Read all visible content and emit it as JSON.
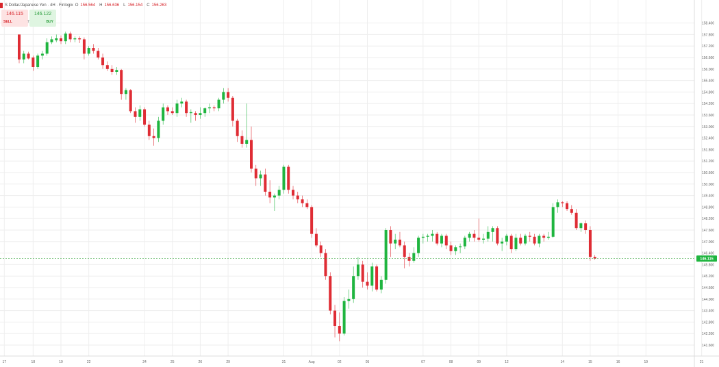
{
  "header": {
    "symbol_title": "S Dollar/Japanese Yen · 4H · Finlogix",
    "ohlc": [
      {
        "key": "O",
        "value": "156.564"
      },
      {
        "key": "H",
        "value": "156.636"
      },
      {
        "key": "L",
        "value": "156.154"
      },
      {
        "key": "C",
        "value": "156.263"
      }
    ]
  },
  "trade": {
    "sell_price": "146.115",
    "buy_price": "146.122",
    "sell_label": "SELL",
    "buy_label": "BUY",
    "spread": "7"
  },
  "colors": {
    "up": "#1fb53f",
    "down": "#df2c34",
    "grid": "#eeeeee",
    "current_price_line": "#4caf50",
    "current_price_tag": "#1fb53f"
  },
  "chart_data": {
    "type": "candlestick",
    "title": "",
    "xlabel": "",
    "ylabel": "",
    "ylim": [
      141.6,
      159.1
    ],
    "grid": true,
    "y_ticks": [
      "158.400",
      "157.800",
      "157.200",
      "156.600",
      "156.000",
      "155.400",
      "154.800",
      "154.200",
      "153.600",
      "153.000",
      "152.400",
      "151.800",
      "151.200",
      "150.600",
      "150.000",
      "149.400",
      "148.800",
      "148.200",
      "147.600",
      "147.000",
      "146.400",
      "145.800",
      "145.200",
      "144.600",
      "144.000",
      "143.400",
      "142.800",
      "142.200",
      "141.600"
    ],
    "x_ticks": [
      {
        "label": "17",
        "index": -3.2
      },
      {
        "label": "18",
        "index": 3
      },
      {
        "label": "19",
        "index": 9
      },
      {
        "label": "22",
        "index": 15
      },
      {
        "label": "24",
        "index": 27
      },
      {
        "label": "25",
        "index": 33
      },
      {
        "label": "26",
        "index": 39
      },
      {
        "label": "29",
        "index": 45
      },
      {
        "label": "31",
        "index": 57
      },
      {
        "label": "Aug",
        "index": 63
      },
      {
        "label": "02",
        "index": 69
      },
      {
        "label": "05",
        "index": 75
      },
      {
        "label": "07",
        "index": 87
      },
      {
        "label": "08",
        "index": 93
      },
      {
        "label": "09",
        "index": 99
      },
      {
        "label": "12",
        "index": 105
      },
      {
        "label": "14",
        "index": 117
      },
      {
        "label": "15",
        "index": 123
      },
      {
        "label": "16",
        "index": 129
      },
      {
        "label": "19",
        "index": 135
      },
      {
        "label": "21",
        "index": 147
      }
    ],
    "current_price": 146.115,
    "current_price_label": "146.115",
    "candles": [
      {
        "o": 157.8,
        "h": 157.8,
        "l": 156.3,
        "c": 156.5
      },
      {
        "o": 156.5,
        "h": 156.95,
        "l": 156.3,
        "c": 156.8
      },
      {
        "o": 156.8,
        "h": 156.9,
        "l": 156.5,
        "c": 156.55
      },
      {
        "o": 156.6,
        "h": 156.7,
        "l": 155.9,
        "c": 156.1
      },
      {
        "o": 156.1,
        "h": 156.8,
        "l": 156.0,
        "c": 156.7
      },
      {
        "o": 156.7,
        "h": 156.95,
        "l": 156.5,
        "c": 156.8
      },
      {
        "o": 156.8,
        "h": 157.6,
        "l": 156.7,
        "c": 157.4
      },
      {
        "o": 157.4,
        "h": 157.7,
        "l": 157.3,
        "c": 157.55
      },
      {
        "o": 157.5,
        "h": 157.8,
        "l": 157.4,
        "c": 157.6
      },
      {
        "o": 157.6,
        "h": 157.75,
        "l": 157.3,
        "c": 157.45
      },
      {
        "o": 157.45,
        "h": 157.95,
        "l": 157.3,
        "c": 157.85
      },
      {
        "o": 157.85,
        "h": 157.95,
        "l": 157.4,
        "c": 157.55
      },
      {
        "o": 157.55,
        "h": 157.7,
        "l": 157.4,
        "c": 157.6
      },
      {
        "o": 157.6,
        "h": 157.7,
        "l": 157.35,
        "c": 157.55
      },
      {
        "o": 157.55,
        "h": 157.65,
        "l": 156.5,
        "c": 156.8
      },
      {
        "o": 156.8,
        "h": 157.2,
        "l": 156.7,
        "c": 157.1
      },
      {
        "o": 157.1,
        "h": 157.3,
        "l": 156.8,
        "c": 156.95
      },
      {
        "o": 156.95,
        "h": 157.1,
        "l": 156.5,
        "c": 156.6
      },
      {
        "o": 156.6,
        "h": 156.8,
        "l": 156.0,
        "c": 156.2
      },
      {
        "o": 156.2,
        "h": 156.4,
        "l": 155.9,
        "c": 156.0
      },
      {
        "o": 156.0,
        "h": 156.2,
        "l": 155.7,
        "c": 155.85
      },
      {
        "o": 155.85,
        "h": 156.1,
        "l": 155.7,
        "c": 155.95
      },
      {
        "o": 155.95,
        "h": 156.0,
        "l": 154.4,
        "c": 154.7
      },
      {
        "o": 154.7,
        "h": 155.0,
        "l": 154.4,
        "c": 154.9
      },
      {
        "o": 154.9,
        "h": 154.95,
        "l": 153.7,
        "c": 153.8
      },
      {
        "o": 153.8,
        "h": 154.0,
        "l": 153.2,
        "c": 153.5
      },
      {
        "o": 153.5,
        "h": 154.1,
        "l": 153.3,
        "c": 153.9
      },
      {
        "o": 153.9,
        "h": 154.0,
        "l": 153.0,
        "c": 153.1
      },
      {
        "o": 153.1,
        "h": 153.3,
        "l": 152.3,
        "c": 152.5
      },
      {
        "o": 152.5,
        "h": 152.9,
        "l": 152.0,
        "c": 152.4
      },
      {
        "o": 152.4,
        "h": 153.5,
        "l": 152.2,
        "c": 153.3
      },
      {
        "o": 153.3,
        "h": 154.2,
        "l": 153.1,
        "c": 154.0
      },
      {
        "o": 154.0,
        "h": 154.1,
        "l": 153.6,
        "c": 153.8
      },
      {
        "o": 153.8,
        "h": 154.0,
        "l": 153.6,
        "c": 153.7
      },
      {
        "o": 153.7,
        "h": 154.4,
        "l": 153.5,
        "c": 154.2
      },
      {
        "o": 154.2,
        "h": 154.5,
        "l": 154.0,
        "c": 154.3
      },
      {
        "o": 154.3,
        "h": 154.4,
        "l": 153.5,
        "c": 153.7
      },
      {
        "o": 153.7,
        "h": 153.9,
        "l": 153.2,
        "c": 153.75
      },
      {
        "o": 153.7,
        "h": 153.8,
        "l": 153.3,
        "c": 153.6
      },
      {
        "o": 153.6,
        "h": 154.0,
        "l": 153.4,
        "c": 153.7
      },
      {
        "o": 153.7,
        "h": 154.0,
        "l": 153.5,
        "c": 153.95
      },
      {
        "o": 153.95,
        "h": 154.2,
        "l": 153.7,
        "c": 154.0
      },
      {
        "o": 154.0,
        "h": 154.1,
        "l": 153.8,
        "c": 153.95
      },
      {
        "o": 153.95,
        "h": 154.5,
        "l": 153.8,
        "c": 154.4
      },
      {
        "o": 154.4,
        "h": 155.0,
        "l": 154.2,
        "c": 154.8
      },
      {
        "o": 154.8,
        "h": 155.0,
        "l": 154.3,
        "c": 154.5
      },
      {
        "o": 154.5,
        "h": 154.6,
        "l": 153.0,
        "c": 153.3
      },
      {
        "o": 153.3,
        "h": 153.4,
        "l": 152.2,
        "c": 152.5
      },
      {
        "o": 152.5,
        "h": 152.8,
        "l": 151.9,
        "c": 152.1
      },
      {
        "o": 152.1,
        "h": 154.2,
        "l": 151.9,
        "c": 152.3
      },
      {
        "o": 152.3,
        "h": 153.0,
        "l": 150.6,
        "c": 150.8
      },
      {
        "o": 150.8,
        "h": 151.0,
        "l": 149.9,
        "c": 150.3
      },
      {
        "o": 150.3,
        "h": 150.7,
        "l": 149.9,
        "c": 150.5
      },
      {
        "o": 150.5,
        "h": 150.8,
        "l": 149.4,
        "c": 149.6
      },
      {
        "o": 149.6,
        "h": 150.2,
        "l": 149.0,
        "c": 149.3
      },
      {
        "o": 149.3,
        "h": 149.5,
        "l": 148.6,
        "c": 149.4
      },
      {
        "o": 149.4,
        "h": 149.9,
        "l": 149.2,
        "c": 149.7
      },
      {
        "o": 149.7,
        "h": 151.0,
        "l": 149.5,
        "c": 150.9
      },
      {
        "o": 150.9,
        "h": 151.0,
        "l": 149.5,
        "c": 149.7
      },
      {
        "o": 149.7,
        "h": 149.9,
        "l": 149.2,
        "c": 149.4
      },
      {
        "o": 149.4,
        "h": 149.6,
        "l": 149.0,
        "c": 149.2
      },
      {
        "o": 149.2,
        "h": 149.4,
        "l": 148.8,
        "c": 149.0
      },
      {
        "o": 149.0,
        "h": 149.2,
        "l": 148.7,
        "c": 148.8
      },
      {
        "o": 148.8,
        "h": 148.9,
        "l": 147.2,
        "c": 147.4
      },
      {
        "o": 147.4,
        "h": 147.7,
        "l": 146.7,
        "c": 146.8
      },
      {
        "o": 146.8,
        "h": 147.0,
        "l": 146.2,
        "c": 146.4
      },
      {
        "o": 146.4,
        "h": 146.6,
        "l": 145.0,
        "c": 145.2
      },
      {
        "o": 145.2,
        "h": 145.4,
        "l": 143.2,
        "c": 143.4
      },
      {
        "o": 143.4,
        "h": 143.7,
        "l": 142.0,
        "c": 142.6
      },
      {
        "o": 142.6,
        "h": 143.3,
        "l": 141.8,
        "c": 142.2
      },
      {
        "o": 142.2,
        "h": 144.1,
        "l": 142.1,
        "c": 143.9
      },
      {
        "o": 143.9,
        "h": 144.5,
        "l": 143.5,
        "c": 144.0
      },
      {
        "o": 144.0,
        "h": 145.7,
        "l": 143.8,
        "c": 145.2
      },
      {
        "o": 145.2,
        "h": 146.2,
        "l": 145.0,
        "c": 145.8
      },
      {
        "o": 145.8,
        "h": 146.0,
        "l": 144.6,
        "c": 144.9
      },
      {
        "o": 144.9,
        "h": 145.4,
        "l": 144.5,
        "c": 144.7
      },
      {
        "o": 144.7,
        "h": 145.9,
        "l": 144.4,
        "c": 145.7
      },
      {
        "o": 145.7,
        "h": 145.8,
        "l": 144.4,
        "c": 144.5
      },
      {
        "o": 144.5,
        "h": 145.2,
        "l": 144.3,
        "c": 145.0
      },
      {
        "o": 145.0,
        "h": 147.7,
        "l": 144.8,
        "c": 147.6
      },
      {
        "o": 147.6,
        "h": 147.8,
        "l": 146.2,
        "c": 146.9
      },
      {
        "o": 146.9,
        "h": 147.4,
        "l": 146.6,
        "c": 147.1
      },
      {
        "o": 147.1,
        "h": 147.5,
        "l": 146.7,
        "c": 146.8
      },
      {
        "o": 146.8,
        "h": 147.0,
        "l": 145.6,
        "c": 146.2
      },
      {
        "o": 146.2,
        "h": 146.4,
        "l": 145.7,
        "c": 146.0
      },
      {
        "o": 146.0,
        "h": 146.7,
        "l": 145.9,
        "c": 146.4
      },
      {
        "o": 146.4,
        "h": 147.3,
        "l": 146.2,
        "c": 147.2
      },
      {
        "o": 147.2,
        "h": 147.4,
        "l": 146.9,
        "c": 147.25
      },
      {
        "o": 147.25,
        "h": 147.4,
        "l": 147.0,
        "c": 147.3
      },
      {
        "o": 147.3,
        "h": 147.6,
        "l": 147.0,
        "c": 147.4
      },
      {
        "o": 147.4,
        "h": 147.5,
        "l": 146.8,
        "c": 146.9
      },
      {
        "o": 146.9,
        "h": 147.4,
        "l": 146.7,
        "c": 147.3
      },
      {
        "o": 147.3,
        "h": 147.4,
        "l": 146.6,
        "c": 146.8
      },
      {
        "o": 146.8,
        "h": 147.0,
        "l": 146.3,
        "c": 146.5
      },
      {
        "o": 146.5,
        "h": 146.8,
        "l": 146.3,
        "c": 146.7
      },
      {
        "o": 146.7,
        "h": 146.9,
        "l": 146.4,
        "c": 146.75
      },
      {
        "o": 146.75,
        "h": 147.3,
        "l": 146.6,
        "c": 147.2
      },
      {
        "o": 147.2,
        "h": 147.5,
        "l": 147.0,
        "c": 147.4
      },
      {
        "o": 147.4,
        "h": 147.6,
        "l": 147.0,
        "c": 147.2
      },
      {
        "o": 147.2,
        "h": 148.2,
        "l": 147.0,
        "c": 147.1
      },
      {
        "o": 147.1,
        "h": 147.4,
        "l": 146.9,
        "c": 147.15
      },
      {
        "o": 147.15,
        "h": 147.8,
        "l": 147.0,
        "c": 147.5
      },
      {
        "o": 147.5,
        "h": 147.8,
        "l": 147.0,
        "c": 147.7
      },
      {
        "o": 147.7,
        "h": 147.8,
        "l": 146.8,
        "c": 146.9
      },
      {
        "o": 146.9,
        "h": 147.2,
        "l": 146.5,
        "c": 147.0
      },
      {
        "o": 147.0,
        "h": 147.4,
        "l": 146.8,
        "c": 147.3
      },
      {
        "o": 147.3,
        "h": 147.4,
        "l": 146.4,
        "c": 146.6
      },
      {
        "o": 146.6,
        "h": 147.4,
        "l": 146.5,
        "c": 147.2
      },
      {
        "o": 147.2,
        "h": 147.4,
        "l": 146.8,
        "c": 146.9
      },
      {
        "o": 146.9,
        "h": 147.4,
        "l": 146.8,
        "c": 147.3
      },
      {
        "o": 147.3,
        "h": 147.5,
        "l": 147.0,
        "c": 147.25
      },
      {
        "o": 147.25,
        "h": 147.4,
        "l": 146.8,
        "c": 146.9
      },
      {
        "o": 146.9,
        "h": 147.4,
        "l": 146.7,
        "c": 147.3
      },
      {
        "o": 147.3,
        "h": 147.4,
        "l": 147.0,
        "c": 147.2
      },
      {
        "o": 147.2,
        "h": 147.5,
        "l": 147.1,
        "c": 147.25
      },
      {
        "o": 147.25,
        "h": 149.0,
        "l": 147.2,
        "c": 148.8
      },
      {
        "o": 148.8,
        "h": 149.2,
        "l": 148.5,
        "c": 149.05
      },
      {
        "o": 149.05,
        "h": 149.1,
        "l": 148.8,
        "c": 149.0
      },
      {
        "o": 149.0,
        "h": 149.1,
        "l": 148.6,
        "c": 148.7
      },
      {
        "o": 148.7,
        "h": 148.9,
        "l": 148.4,
        "c": 148.5
      },
      {
        "o": 148.5,
        "h": 148.7,
        "l": 147.6,
        "c": 147.7
      },
      {
        "o": 147.7,
        "h": 148.0,
        "l": 147.5,
        "c": 147.95
      },
      {
        "o": 147.95,
        "h": 148.1,
        "l": 147.4,
        "c": 147.6
      },
      {
        "o": 147.6,
        "h": 147.8,
        "l": 146.0,
        "c": 146.2
      },
      {
        "o": 146.2,
        "h": 146.3,
        "l": 146.05,
        "c": 146.115
      }
    ]
  }
}
